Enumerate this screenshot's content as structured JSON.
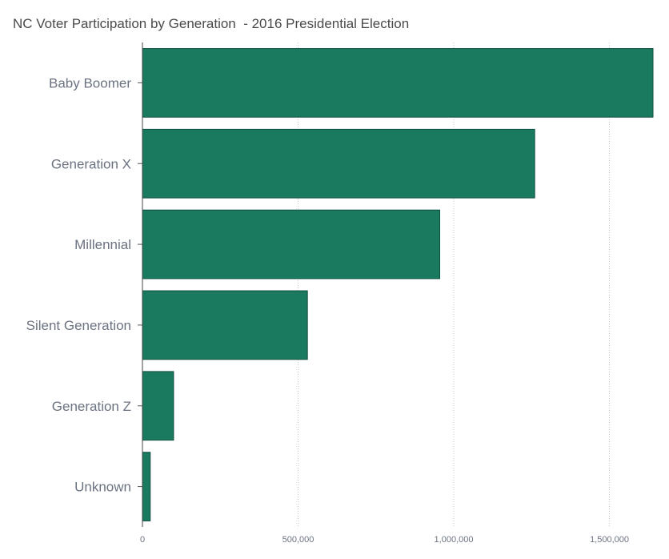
{
  "chart_data": {
    "type": "bar",
    "orientation": "horizontal",
    "title": "NC Voter Participation by Generation  - 2016 Presidential Election",
    "categories": [
      "Baby Boomer",
      "Generation X",
      "Millennial",
      "Silent Generation",
      "Generation Z",
      "Unknown"
    ],
    "values": [
      1640000,
      1260000,
      955000,
      530000,
      100000,
      25000
    ],
    "xlim": [
      0,
      1640000
    ],
    "xticks": [
      0,
      500000,
      1000000,
      1500000
    ],
    "xtick_labels": [
      "0",
      "500,000",
      "1,000,000",
      "1,500,000"
    ],
    "xlabel": "",
    "ylabel": "",
    "grid": "vertical dotted",
    "bar_color": "#1a7a60",
    "bar_border_color": "#0f4f3e"
  }
}
